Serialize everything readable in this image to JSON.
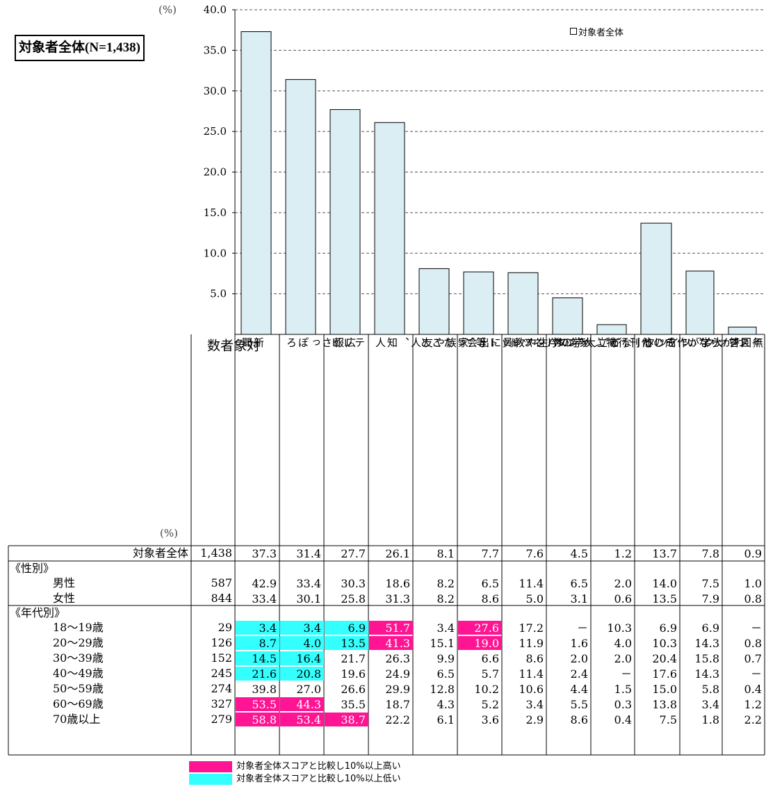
{
  "title": "対象者全体",
  "title_n": "(N=1,438)",
  "unit_top": "(%)",
  "unit_table": "(%)",
  "legend_label": "対象者全体",
  "count_header": "対\n象\n者\n数",
  "colors": {
    "bar": "#dbeef4",
    "high": "#ff1493",
    "low": "#33ffff"
  },
  "chart_data": {
    "type": "bar",
    "categories": [
      "新聞",
      "広報さっぽろ",
      "テレビ",
      "家族や友人、知人",
      "市立大学の学生や教員に出会ったこと",
      "大学が作成した刊行物（大学のパンフレット等）",
      "インターネット",
      "ラジオ",
      "ＳＮＳ（フェイスブック、ツイッターなど）",
      "その他",
      "わからない",
      "無回答"
    ],
    "category_labels": [
      "新\n聞",
      "広\n報\nさ\nっ\nぽ\nろ",
      "テ\nレ\nビ",
      "家\n族\nや\n友\n人\n、\n知\n人",
      "市\n立\n大\n学\nの\n学\n生\nや\n教\n員\nに\n出\n会\nっ\nた\nこ\nと",
      "大\n学\nが\n作\n成\nし\nた\n刊\n行\n物\n（\n大\n学\nの\nパ\nン\nフ\nレ\nッ\nト\n等\n）",
      "イ\nン\nタ\nー\nネ\nッ\nト",
      "ラ\nジ\nオ",
      "Ｓ\nＮ\nＳ\n（\nフ\nェ\nイ\nス\nブ\nッ\nク\n、\nツ\nイ\nッ\nタ\nー\nな\nど\n）",
      "そ\nの\n他",
      "わ\nか\nら\nな\nい",
      "無\n回\n答"
    ],
    "series": [
      {
        "name": "対象者全体",
        "values": [
          37.3,
          31.4,
          27.7,
          26.1,
          8.1,
          7.7,
          7.6,
          4.5,
          1.2,
          13.7,
          7.8,
          0.9
        ]
      }
    ],
    "y_ticks": [
      "5.0",
      "10.0",
      "15.0",
      "20.0",
      "25.0",
      "30.0",
      "35.0",
      "40.0"
    ],
    "ylim": [
      0,
      40
    ],
    "grid": true,
    "legend_position": "top-right"
  },
  "table": {
    "rows": [
      {
        "type": "data",
        "label": "対象者全体",
        "align": "right",
        "n": "1,438",
        "values": [
          "37.3",
          "31.4",
          "27.7",
          "26.1",
          "8.1",
          "7.7",
          "7.6",
          "4.5",
          "1.2",
          "13.7",
          "7.8",
          "0.9"
        ],
        "flags": []
      },
      {
        "type": "section",
        "label": "《性別》"
      },
      {
        "type": "data",
        "label": "男性",
        "n": "587",
        "values": [
          "42.9",
          "33.4",
          "30.3",
          "18.6",
          "8.2",
          "6.5",
          "11.4",
          "6.5",
          "2.0",
          "14.0",
          "7.5",
          "1.0"
        ],
        "flags": []
      },
      {
        "type": "data",
        "label": "女性",
        "n": "844",
        "values": [
          "33.4",
          "30.1",
          "25.8",
          "31.3",
          "8.2",
          "8.6",
          "5.0",
          "3.1",
          "0.6",
          "13.5",
          "7.9",
          "0.8"
        ],
        "flags": []
      },
      {
        "type": "section",
        "label": "《年代別》"
      },
      {
        "type": "data",
        "label": "18～19歳",
        "n": "29",
        "values": [
          "3.4",
          "3.4",
          "6.9",
          "51.7",
          "3.4",
          "27.6",
          "17.2",
          "－",
          "10.3",
          "6.9",
          "6.9",
          "－"
        ],
        "flags": [
          "lo",
          "lo",
          "lo",
          "hi",
          "",
          "hi",
          "",
          "",
          "",
          "",
          "",
          ""
        ]
      },
      {
        "type": "data",
        "label": "20～29歳",
        "n": "126",
        "values": [
          "8.7",
          "4.0",
          "13.5",
          "41.3",
          "15.1",
          "19.0",
          "11.9",
          "1.6",
          "4.0",
          "10.3",
          "14.3",
          "0.8"
        ],
        "flags": [
          "lo",
          "lo",
          "lo",
          "hi",
          "",
          "hi",
          "",
          "",
          "",
          "",
          "",
          ""
        ]
      },
      {
        "type": "data",
        "label": "30～39歳",
        "n": "152",
        "values": [
          "14.5",
          "16.4",
          "21.7",
          "26.3",
          "9.9",
          "6.6",
          "8.6",
          "2.0",
          "2.0",
          "20.4",
          "15.8",
          "0.7"
        ],
        "flags": [
          "lo",
          "lo",
          "",
          "",
          "",
          "",
          "",
          "",
          "",
          "",
          "",
          ""
        ]
      },
      {
        "type": "data",
        "label": "40～49歳",
        "n": "245",
        "values": [
          "21.6",
          "20.8",
          "19.6",
          "24.9",
          "6.5",
          "5.7",
          "11.4",
          "2.4",
          "－",
          "17.6",
          "14.3",
          "－"
        ],
        "flags": [
          "lo",
          "lo",
          "",
          "",
          "",
          "",
          "",
          "",
          "",
          "",
          "",
          ""
        ]
      },
      {
        "type": "data",
        "label": "50～59歳",
        "n": "274",
        "values": [
          "39.8",
          "27.0",
          "26.6",
          "29.9",
          "12.8",
          "10.2",
          "10.6",
          "4.4",
          "1.5",
          "15.0",
          "5.8",
          "0.4"
        ],
        "flags": []
      },
      {
        "type": "data",
        "label": "60～69歳",
        "n": "327",
        "values": [
          "53.5",
          "44.3",
          "35.5",
          "18.7",
          "4.3",
          "5.2",
          "3.4",
          "5.5",
          "0.3",
          "13.8",
          "3.4",
          "1.2"
        ],
        "flags": [
          "hi",
          "hi",
          "",
          "",
          "",
          "",
          "",
          "",
          "",
          "",
          "",
          ""
        ]
      },
      {
        "type": "data",
        "label": "70歳以上",
        "n": "279",
        "values": [
          "58.8",
          "53.4",
          "38.7",
          "22.2",
          "6.1",
          "3.6",
          "2.9",
          "8.6",
          "0.4",
          "7.5",
          "1.8",
          "2.2"
        ],
        "flags": [
          "hi",
          "hi",
          "hi",
          "",
          "",
          "",
          "",
          "",
          "",
          "",
          "",
          ""
        ]
      }
    ]
  },
  "footnotes": [
    {
      "label": "対象者全体スコアと比較し10%以上高い",
      "color": "high"
    },
    {
      "label": "対象者全体スコアと比較し10%以上低い",
      "color": "low"
    }
  ]
}
